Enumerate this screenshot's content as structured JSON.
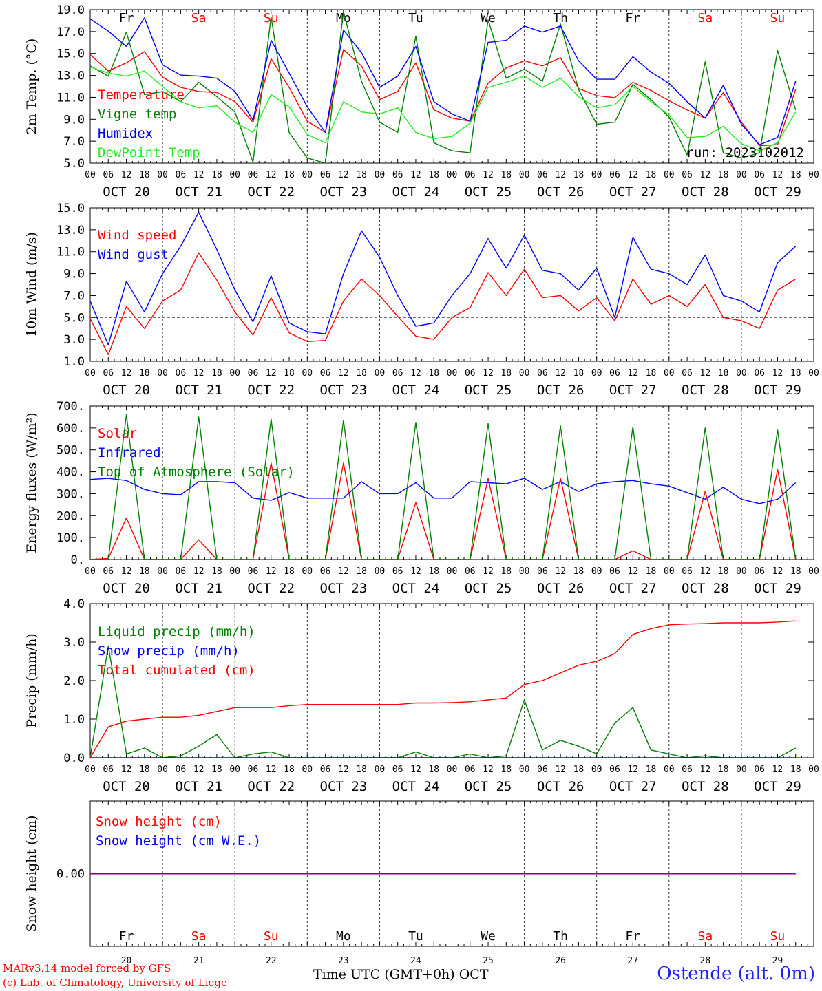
{
  "days": {
    "weekday_names": [
      "Fr",
      "Sa",
      "Su",
      "Mo",
      "Tu",
      "We",
      "Th",
      "Fr",
      "Sa",
      "Su"
    ],
    "weekend_flags": [
      false,
      true,
      true,
      false,
      false,
      false,
      false,
      false,
      true,
      true
    ],
    "date_labels": [
      "OCT 20",
      "OCT 21",
      "OCT 22",
      "OCT 23",
      "OCT 24",
      "OCT 25",
      "OCT 26",
      "OCT 27",
      "OCT 28",
      "OCT 29"
    ],
    "day_numbers": [
      "20",
      "21",
      "22",
      "23",
      "24",
      "25",
      "26",
      "27",
      "28",
      "29"
    ],
    "hour_ticks": [
      "00",
      "06",
      "12",
      "18"
    ],
    "end_tick": "00"
  },
  "colors": {
    "red": "#ff0000",
    "green": "#008000",
    "blue": "#0000ff",
    "light_green": "#22ee22",
    "weekend": "#ff0000",
    "purple": "#800080"
  },
  "footer": {
    "model_credit": "MARv3.14 model forced by GFS",
    "lab_credit": "(c) Lab. of Climatology, University of Liege",
    "xaxis_title": "Time UTC (GMT+0h) OCT",
    "station": "Ostende (alt. 0m)"
  },
  "chart_data": [
    {
      "id": "temperature",
      "type": "line",
      "ylabel": "2m Temp. (°C)",
      "ylim": [
        5.0,
        20.0
      ],
      "yticks": [
        "5.0",
        "7.0",
        "9.0",
        "11.0",
        "13.0",
        "15.0",
        "17.0",
        "19.0"
      ],
      "annotation": "run: 2023102012",
      "x_hours": [
        0,
        6,
        12,
        18,
        24,
        30,
        36,
        42,
        48,
        54,
        60,
        66,
        72,
        78,
        84,
        90,
        96,
        102,
        108,
        114,
        120,
        126,
        132,
        138,
        144,
        150,
        156,
        162,
        168,
        174,
        180,
        186,
        192,
        198,
        204,
        210,
        216,
        222,
        228,
        234
      ],
      "series": [
        {
          "name": "Temperature",
          "color": "#ff0000",
          "values": [
            15.6,
            14.0,
            14.8,
            15.9,
            13.4,
            12.4,
            12.0,
            11.9,
            11.0,
            9.0,
            15.2,
            12.4,
            9.1,
            8.0,
            16.1,
            14.5,
            11.2,
            12.0,
            14.8,
            10.2,
            9.4,
            9.1,
            12.8,
            14.3,
            15.0,
            14.5,
            15.3,
            12.3,
            11.6,
            11.4,
            12.9,
            12.1,
            11.1,
            10.2,
            9.4,
            11.9,
            9.0,
            6.7,
            6.8,
            12.2
          ]
        },
        {
          "name": "Vigne temp",
          "color": "#008000",
          "values": [
            14.5,
            13.5,
            17.8,
            11.7,
            12.0,
            11.0,
            12.9,
            11.5,
            10.0,
            5.1,
            19.3,
            8.0,
            5.5,
            4.0,
            19.8,
            13.0,
            9.0,
            8.0,
            17.4,
            7.0,
            6.2,
            6.0,
            19.0,
            13.3,
            14.2,
            13.0,
            18.6,
            12.2,
            8.8,
            9.0,
            12.7,
            11.2,
            9.5,
            5.8,
            14.9,
            6.0,
            5.5,
            6.0,
            16.0,
            10.2
          ]
        },
        {
          "name": "Humidex",
          "color": "#0000ff",
          "values": [
            19.1,
            17.9,
            16.4,
            19.2,
            14.6,
            13.6,
            13.5,
            13.3,
            12.0,
            9.2,
            17.0,
            13.8,
            10.5,
            8.0,
            18.0,
            15.8,
            12.4,
            13.5,
            16.4,
            11.0,
            9.8,
            9.1,
            16.8,
            17.0,
            18.4,
            17.8,
            18.4,
            15.0,
            13.2,
            13.2,
            15.4,
            13.9,
            12.8,
            11.0,
            9.4,
            12.6,
            8.8,
            6.8,
            7.5,
            13.0
          ]
        },
        {
          "name": "DewPoint Temp",
          "color": "#22ee22",
          "values": [
            14.4,
            13.8,
            13.5,
            14.0,
            12.5,
            11.0,
            10.4,
            10.6,
            9.0,
            8.0,
            11.7,
            10.5,
            7.8,
            7.0,
            11.0,
            10.0,
            9.8,
            10.4,
            8.0,
            7.4,
            7.6,
            8.9,
            12.4,
            12.9,
            13.5,
            12.4,
            13.3,
            11.5,
            10.4,
            10.7,
            12.5,
            11.0,
            9.7,
            7.5,
            7.6,
            8.6,
            6.9,
            6.2,
            7.0,
            10.0
          ]
        }
      ]
    },
    {
      "id": "wind",
      "type": "line",
      "ylabel": "10m Wind (m/s)",
      "ylim": [
        1.0,
        15.0
      ],
      "yticks": [
        "1.0",
        "3.0",
        "5.0",
        "7.0",
        "9.0",
        "11.0",
        "13.0",
        "15.0"
      ],
      "reference_line": 5.0,
      "x_hours": [
        0,
        6,
        12,
        18,
        24,
        30,
        36,
        42,
        48,
        54,
        60,
        66,
        72,
        78,
        84,
        90,
        96,
        102,
        108,
        114,
        120,
        126,
        132,
        138,
        144,
        150,
        156,
        162,
        168,
        174,
        180,
        186,
        192,
        198,
        204,
        210,
        216,
        222,
        228,
        234
      ],
      "series": [
        {
          "name": "Wind speed",
          "color": "#ff0000",
          "values": [
            4.9,
            1.6,
            6.0,
            4.0,
            6.5,
            7.5,
            10.9,
            8.4,
            5.5,
            3.4,
            6.8,
            3.6,
            2.8,
            2.9,
            6.5,
            8.5,
            7.0,
            5.1,
            3.3,
            3.0,
            5.0,
            5.9,
            9.1,
            7.0,
            9.4,
            6.8,
            7.0,
            5.6,
            6.8,
            4.7,
            8.5,
            6.2,
            7.0,
            6.0,
            8.0,
            5.0,
            4.7,
            4.0,
            7.5,
            8.5
          ]
        },
        {
          "name": "Wind gust",
          "color": "#0000ff",
          "values": [
            6.5,
            2.5,
            8.3,
            5.5,
            9.0,
            11.5,
            14.6,
            11.2,
            7.5,
            4.6,
            8.8,
            4.5,
            3.7,
            3.5,
            9.0,
            12.9,
            10.5,
            7.0,
            4.2,
            4.5,
            7.0,
            9.0,
            12.2,
            9.5,
            12.5,
            9.3,
            9.0,
            7.5,
            9.5,
            5.0,
            12.3,
            9.4,
            9.0,
            8.0,
            10.7,
            7.0,
            6.5,
            5.5,
            10.0,
            11.5
          ]
        }
      ]
    },
    {
      "id": "energy",
      "type": "line",
      "ylabel": "Energy fluxes (W/m²)",
      "ylim": [
        0,
        700
      ],
      "yticks": [
        "0.",
        "100.",
        "200.",
        "300.",
        "400.",
        "500.",
        "600.",
        "700."
      ],
      "x_hours": [
        0,
        6,
        12,
        18,
        24,
        30,
        36,
        42,
        48,
        54,
        60,
        66,
        72,
        78,
        84,
        90,
        96,
        102,
        108,
        114,
        120,
        126,
        132,
        138,
        144,
        150,
        156,
        162,
        168,
        174,
        180,
        186,
        192,
        198,
        204,
        210,
        216,
        222,
        228,
        234
      ],
      "series": [
        {
          "name": "Solar",
          "color": "#ff0000",
          "values": [
            0,
            5,
            190,
            0,
            0,
            0,
            90,
            0,
            0,
            0,
            440,
            0,
            0,
            0,
            440,
            0,
            0,
            0,
            260,
            0,
            0,
            0,
            370,
            0,
            0,
            0,
            370,
            0,
            0,
            0,
            40,
            0,
            0,
            0,
            310,
            0,
            0,
            0,
            410,
            0
          ]
        },
        {
          "name": "Infrared",
          "color": "#0000ff",
          "values": [
            365,
            370,
            360,
            320,
            300,
            295,
            355,
            355,
            350,
            280,
            270,
            305,
            280,
            280,
            280,
            355,
            300,
            300,
            350,
            280,
            280,
            355,
            350,
            345,
            370,
            320,
            355,
            310,
            345,
            355,
            360,
            345,
            335,
            305,
            275,
            330,
            275,
            255,
            275,
            350
          ]
        },
        {
          "name": "Top of Atmosphere (Solar)",
          "color": "#008000",
          "values": [
            0,
            0,
            660,
            0,
            0,
            0,
            650,
            0,
            0,
            0,
            640,
            0,
            0,
            0,
            635,
            0,
            0,
            0,
            625,
            0,
            0,
            0,
            620,
            0,
            0,
            0,
            610,
            0,
            0,
            0,
            605,
            0,
            0,
            0,
            600,
            0,
            0,
            0,
            590,
            0
          ]
        }
      ]
    },
    {
      "id": "precip",
      "type": "line",
      "ylabel": "Precip (mm/h)",
      "ylim": [
        0.0,
        4.0
      ],
      "yticks": [
        "0.0",
        "1.0",
        "2.0",
        "3.0",
        "4.0"
      ],
      "x_hours": [
        0,
        6,
        12,
        18,
        24,
        30,
        36,
        42,
        48,
        54,
        60,
        66,
        72,
        78,
        84,
        90,
        96,
        102,
        108,
        114,
        120,
        126,
        132,
        138,
        144,
        150,
        156,
        162,
        168,
        174,
        180,
        186,
        192,
        198,
        204,
        210,
        216,
        222,
        228,
        234
      ],
      "series": [
        {
          "name": "Liquid precip (mm/h)",
          "color": "#008000",
          "values": [
            0.0,
            2.9,
            0.1,
            0.25,
            0.0,
            0.05,
            0.3,
            0.6,
            0.0,
            0.1,
            0.15,
            0.0,
            0.0,
            0.0,
            0.0,
            0.0,
            0.0,
            0.0,
            0.15,
            0.0,
            0.0,
            0.1,
            0.0,
            0.05,
            1.5,
            0.2,
            0.45,
            0.3,
            0.1,
            0.9,
            1.3,
            0.2,
            0.1,
            0.0,
            0.05,
            0.0,
            0.0,
            0.0,
            0.0,
            0.25
          ]
        },
        {
          "name": "Snow precip (mm/h)",
          "color": "#0000ff",
          "values": [
            0,
            0,
            0,
            0,
            0,
            0,
            0,
            0,
            0,
            0,
            0,
            0,
            0,
            0,
            0,
            0,
            0,
            0,
            0,
            0,
            0,
            0,
            0,
            0,
            0,
            0,
            0,
            0,
            0,
            0,
            0,
            0,
            0,
            0,
            0,
            0,
            0,
            0,
            0,
            0
          ]
        },
        {
          "name": "Total cumulated (cm)",
          "color": "#ff0000",
          "values": [
            0.0,
            0.8,
            0.95,
            1.0,
            1.05,
            1.05,
            1.1,
            1.2,
            1.3,
            1.3,
            1.3,
            1.35,
            1.38,
            1.38,
            1.38,
            1.38,
            1.38,
            1.38,
            1.42,
            1.42,
            1.43,
            1.45,
            1.5,
            1.55,
            1.9,
            2.0,
            2.2,
            2.4,
            2.5,
            2.7,
            3.2,
            3.35,
            3.45,
            3.47,
            3.48,
            3.5,
            3.5,
            3.5,
            3.52,
            3.55
          ]
        }
      ]
    },
    {
      "id": "snow",
      "type": "line",
      "ylabel": "Snow height (cm)",
      "yticks": [
        "0.00"
      ],
      "x_hours": [
        0,
        234
      ],
      "series": [
        {
          "name": "Snow height (cm)",
          "color": "#ff0000",
          "values": [
            0,
            0
          ]
        },
        {
          "name": "Snow height (cm W.E.)",
          "color": "#0000ff",
          "values": [
            0,
            0
          ]
        }
      ]
    }
  ]
}
